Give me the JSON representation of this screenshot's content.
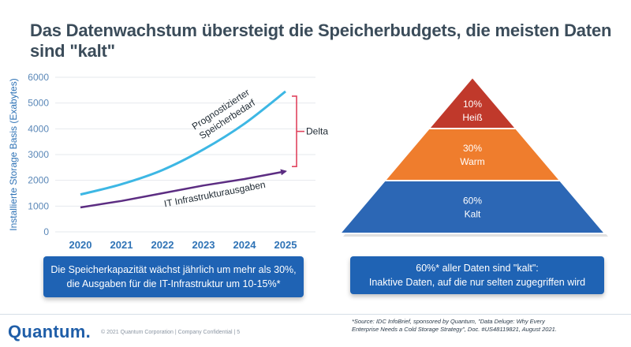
{
  "title": "Das Datenwachstum übersteigt die Speicherbudgets, die meisten Daten sind \"kalt\"",
  "chart_data": [
    {
      "type": "line",
      "title": "",
      "ylabel": "Installierte Storage Basis (Exabytes)",
      "xlabel": "",
      "ylim": [
        0,
        6000
      ],
      "yticks": [
        0,
        1000,
        2000,
        3000,
        4000,
        5000,
        6000
      ],
      "categories": [
        "2020",
        "2021",
        "2022",
        "2023",
        "2024",
        "2025"
      ],
      "grid": true,
      "series": [
        {
          "name": "Prognostizierter Speicherbedarf",
          "label_lines": [
            "Prognostizierter",
            "Speicherbedarf"
          ],
          "color": "#3db7e4",
          "values": [
            1450,
            1850,
            2400,
            3200,
            4200,
            5450
          ]
        },
        {
          "name": "IT Infrastrukturausgaben",
          "label_lines": [
            "IT Infrastrukturausgaben"
          ],
          "color": "#5c2d82",
          "values": [
            950,
            1200,
            1500,
            1800,
            2050,
            2350
          ]
        }
      ],
      "annotations": [
        {
          "text": "Delta",
          "between": [
            5450,
            2350
          ],
          "color": "#e0445e"
        }
      ]
    },
    {
      "type": "pyramid",
      "segments": [
        {
          "percent": "10%",
          "label": "Heiß",
          "value": 10,
          "color": "#c0392b"
        },
        {
          "percent": "30%",
          "label": "Warm",
          "value": 30,
          "color": "#ef7d2d"
        },
        {
          "percent": "60%",
          "label": "Kalt",
          "value": 60,
          "color": "#2c67b5"
        }
      ]
    }
  ],
  "box_left": {
    "line1": "Die Speicherkapazität wächst jährlich um mehr als 30%,",
    "line2": "die Ausgaben für die IT-Infrastruktur um 10-15%*"
  },
  "box_right": {
    "line1": "60%* aller Daten sind \"kalt\":",
    "line2": "Inaktive Daten, auf die nur selten zugegriffen wird"
  },
  "footer": {
    "logo": "Quantum.",
    "copyright": "© 2021 Quantum Corporation | Company Confidential | 5",
    "source_line1": "*Source:  IDC InfoBrief, sponsored by Quantum, \"Data Deluge: Why Every",
    "source_line2": "Enterprise Needs a Cold Storage Strategy\", Doc. #US48119821, August 2021."
  }
}
